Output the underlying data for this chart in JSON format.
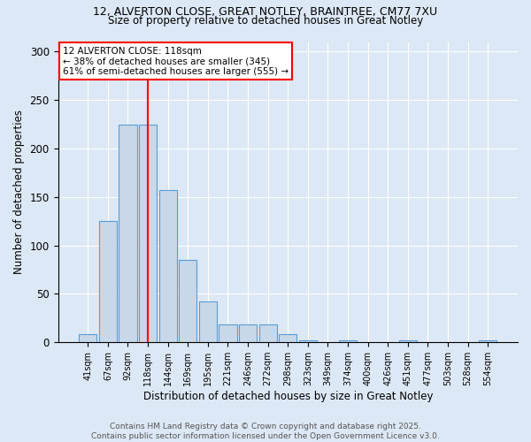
{
  "title1": "12, ALVERTON CLOSE, GREAT NOTLEY, BRAINTREE, CM77 7XU",
  "title2": "Size of property relative to detached houses in Great Notley",
  "xlabel": "Distribution of detached houses by size in Great Notley",
  "ylabel": "Number of detached properties",
  "categories": [
    "41sqm",
    "67sqm",
    "92sqm",
    "118sqm",
    "144sqm",
    "169sqm",
    "195sqm",
    "221sqm",
    "246sqm",
    "272sqm",
    "298sqm",
    "323sqm",
    "349sqm",
    "374sqm",
    "400sqm",
    "426sqm",
    "451sqm",
    "477sqm",
    "503sqm",
    "528sqm",
    "554sqm"
  ],
  "values": [
    8,
    125,
    225,
    225,
    157,
    85,
    42,
    18,
    18,
    18,
    8,
    2,
    0,
    2,
    0,
    0,
    2,
    0,
    0,
    0,
    2
  ],
  "bar_color": "#c8d8e8",
  "bar_edgecolor": "#5b9bd5",
  "vline_x_index": 3,
  "vline_color": "red",
  "annotation_title": "12 ALVERTON CLOSE: 118sqm",
  "annotation_line2": "← 38% of detached houses are smaller (345)",
  "annotation_line3": "61% of semi-detached houses are larger (555) →",
  "ylim": [
    0,
    310
  ],
  "yticks": [
    0,
    50,
    100,
    150,
    200,
    250,
    300
  ],
  "footer1": "Contains HM Land Registry data © Crown copyright and database right 2025.",
  "footer2": "Contains public sector information licensed under the Open Government Licence v3.0.",
  "bg_color": "#dce8f5",
  "plot_bg_color": "#dce8f5"
}
